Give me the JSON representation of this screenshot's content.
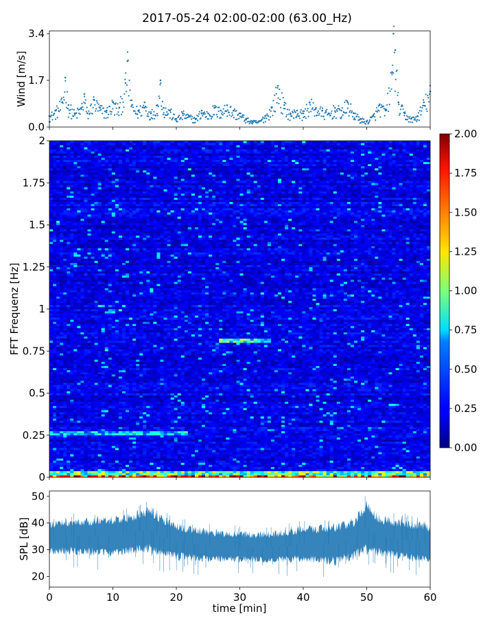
{
  "figure": {
    "title": "2017-05-24 02:00-02:00 (63.00_Hz)"
  },
  "chart_data": [
    {
      "type": "scatter",
      "panel": "wind",
      "ylabel": "Wind [m/s]",
      "xlim": [
        0,
        60
      ],
      "ylim": [
        0,
        3.5
      ],
      "yticks": [
        0.0,
        1.7,
        3.4
      ],
      "ytick_labels": [
        "0.0",
        "1.7",
        "3.4"
      ],
      "color": "#1f77b4",
      "series": [
        {
          "x": [
            0,
            1,
            2,
            2.5,
            3,
            4,
            5,
            5.5,
            6,
            7,
            8,
            9,
            10,
            11,
            12,
            12.3,
            13,
            14,
            15,
            16,
            17,
            17.5,
            18,
            19,
            20,
            21,
            22,
            23,
            24,
            25,
            26,
            27,
            28,
            29,
            30,
            31,
            32,
            33,
            34,
            35,
            36,
            37,
            38,
            39,
            40,
            41,
            42,
            43,
            44,
            45,
            46,
            47,
            48,
            49,
            50,
            51,
            52,
            53,
            54,
            54.2,
            54.5,
            55,
            56,
            57,
            58,
            59,
            60
          ],
          "y": [
            0.4,
            0.6,
            0.9,
            1.8,
            0.8,
            0.5,
            0.7,
            1.2,
            0.5,
            1.0,
            0.7,
            0.6,
            0.9,
            0.7,
            1.6,
            2.4,
            0.8,
            0.6,
            0.9,
            0.5,
            0.8,
            1.7,
            0.7,
            0.6,
            0.3,
            0.5,
            0.4,
            0.3,
            0.6,
            0.5,
            0.7,
            0.6,
            0.8,
            0.6,
            0.5,
            0.3,
            0.2,
            0.2,
            0.4,
            0.7,
            1.5,
            0.8,
            0.5,
            0.6,
            0.5,
            0.9,
            0.7,
            0.6,
            0.5,
            0.7,
            0.6,
            0.9,
            0.5,
            0.3,
            0.2,
            0.4,
            0.8,
            0.6,
            2.0,
            3.4,
            2.8,
            0.9,
            0.5,
            0.3,
            0.4,
            0.9,
            1.3
          ]
        }
      ]
    },
    {
      "type": "heatmap",
      "panel": "spectrogram",
      "ylabel": "FFT Frequenz [Hz]",
      "xlim": [
        0,
        60
      ],
      "ylim": [
        0,
        2
      ],
      "yticks": [
        0,
        0.25,
        0.5,
        0.75,
        1,
        1.25,
        1.5,
        1.75,
        2
      ],
      "ytick_labels": [
        "0",
        "0.25",
        "0.5",
        "0.75",
        "1",
        "1.25",
        "1.5",
        "1.75",
        "2"
      ],
      "colormap": "jet",
      "color_range": [
        0.0,
        2.0
      ],
      "colorbar_ticks": [
        "0.00",
        "0.25",
        "0.50",
        "0.75",
        "1.00",
        "1.25",
        "1.50",
        "1.75",
        "2.00"
      ],
      "typical_value": 0.2,
      "features": [
        {
          "freq": 0.0,
          "start": 0,
          "end": 60,
          "value": 1.6
        },
        {
          "freq": 0.02,
          "start": 0,
          "end": 60,
          "value": 1.0
        },
        {
          "freq": 0.81,
          "start": 27,
          "end": 35,
          "value": 0.9
        },
        {
          "freq": 0.26,
          "start": 0,
          "end": 22,
          "value": 0.7
        }
      ]
    },
    {
      "type": "area",
      "panel": "spl",
      "xlabel": "time [min]",
      "ylabel": "SPL [dB]",
      "xlim": [
        0,
        60
      ],
      "ylim": [
        16,
        52
      ],
      "xticks": [
        0,
        10,
        20,
        30,
        40,
        50,
        60
      ],
      "xtick_labels": [
        "0",
        "10",
        "20",
        "30",
        "40",
        "50",
        "60"
      ],
      "yticks": [
        20,
        30,
        40,
        50
      ],
      "ytick_labels": [
        "20",
        "30",
        "40",
        "50"
      ],
      "color": "#1f77b4",
      "series": [
        {
          "x": [
            0,
            5,
            10,
            13,
            15,
            16,
            17,
            20,
            25,
            30,
            35,
            40,
            45,
            48,
            50,
            52,
            55,
            60
          ],
          "lower": [
            28,
            28,
            27,
            28,
            29,
            28,
            27,
            26,
            25,
            25,
            25,
            25,
            24,
            26,
            28,
            27,
            26,
            25
          ],
          "upper": [
            41,
            42,
            43,
            44,
            46,
            47,
            44,
            40,
            38,
            37,
            37,
            39,
            40,
            42,
            49,
            43,
            42,
            40
          ]
        }
      ]
    }
  ]
}
